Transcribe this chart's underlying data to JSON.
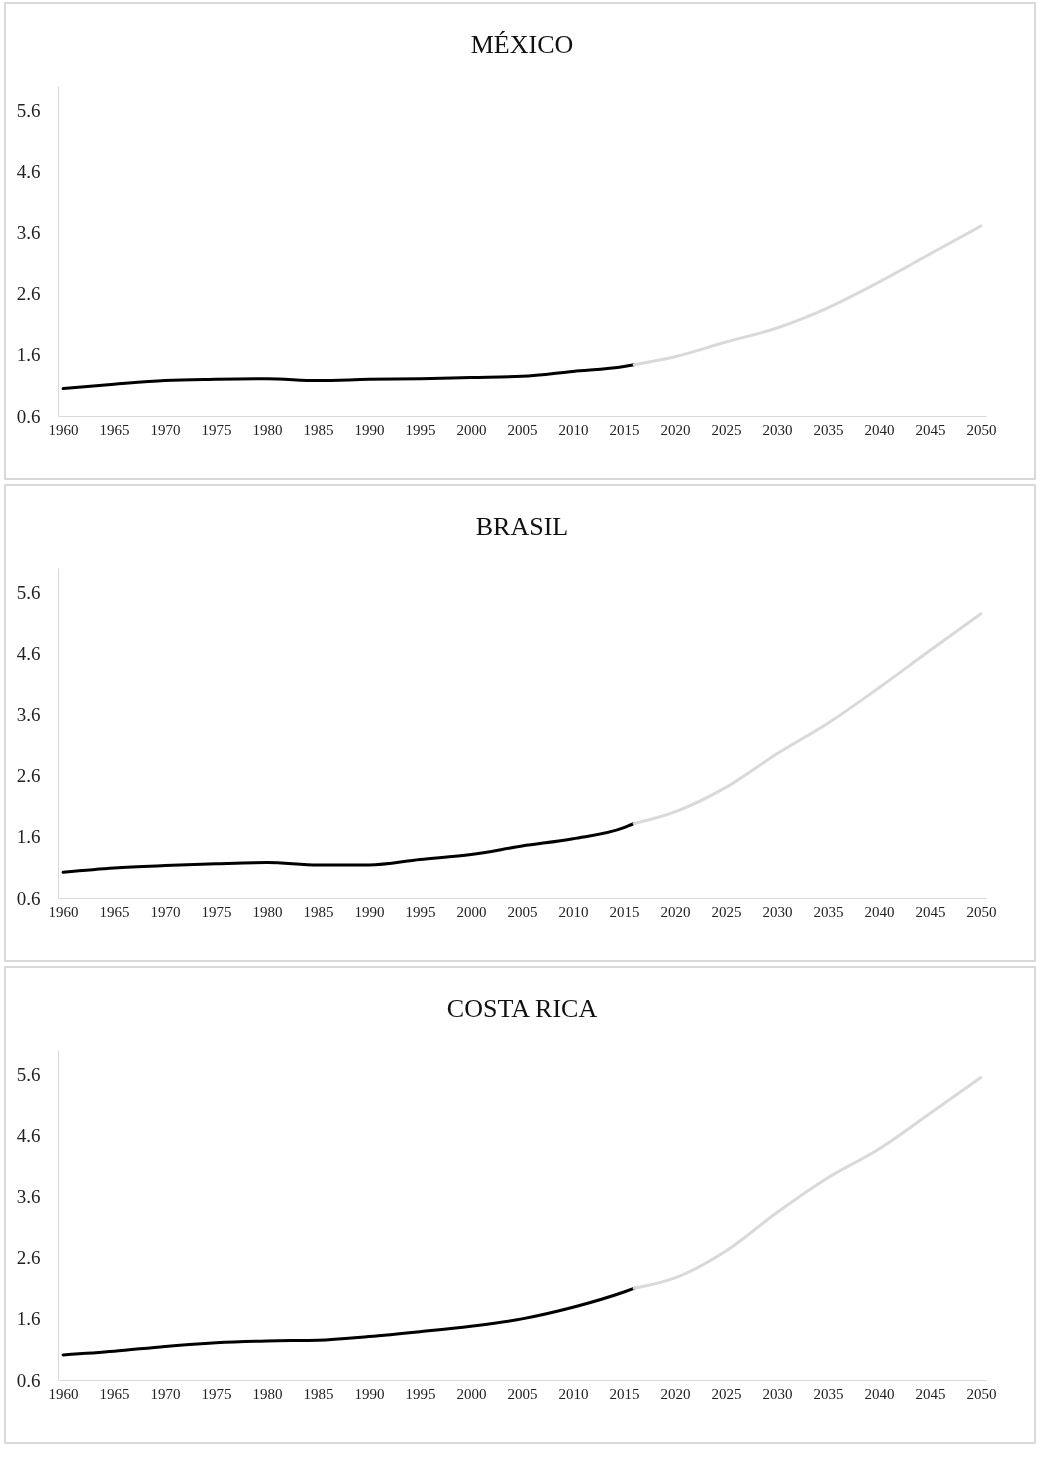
{
  "chart_data": [
    {
      "type": "line",
      "title": "MÉXICO",
      "xlim": [
        1959.5,
        2050.5
      ],
      "xticks": [
        1960,
        1965,
        1970,
        1975,
        1980,
        1985,
        1990,
        1995,
        2000,
        2005,
        2010,
        2015,
        2020,
        2025,
        2030,
        2035,
        2040,
        2045,
        2050
      ],
      "ylim": [
        0.6,
        6.0
      ],
      "yticks": [
        0.6,
        1.6,
        2.6,
        3.6,
        4.6,
        5.6
      ],
      "grid": false,
      "series": [
        {
          "color": "#000000",
          "x": [
            1960,
            1965,
            1970,
            1975,
            1980,
            1985,
            1990,
            1995,
            2000,
            2005,
            2010,
            2015,
            2016
          ],
          "values": [
            1.05,
            1.12,
            1.18,
            1.2,
            1.21,
            1.18,
            1.2,
            1.21,
            1.23,
            1.25,
            1.33,
            1.41,
            1.44
          ]
        },
        {
          "color": "#d9d9d9",
          "x": [
            2016,
            2020,
            2025,
            2030,
            2035,
            2040,
            2045,
            2050
          ],
          "values": [
            1.44,
            1.57,
            1.81,
            2.04,
            2.37,
            2.79,
            3.25,
            3.71
          ]
        }
      ]
    },
    {
      "type": "line",
      "title": "BRASIL",
      "xlim": [
        1959.5,
        2050.5
      ],
      "xticks": [
        1960,
        1965,
        1970,
        1975,
        1980,
        1985,
        1990,
        1995,
        2000,
        2005,
        2010,
        2015,
        2020,
        2025,
        2030,
        2035,
        2040,
        2045,
        2050
      ],
      "ylim": [
        0.6,
        6.0
      ],
      "yticks": [
        0.6,
        1.6,
        2.6,
        3.6,
        4.6,
        5.6
      ],
      "grid": false,
      "series": [
        {
          "color": "#000000",
          "x": [
            1960,
            1965,
            1970,
            1975,
            1980,
            1985,
            1990,
            1995,
            2000,
            2005,
            2010,
            2015,
            2016
          ],
          "values": [
            1.02,
            1.09,
            1.13,
            1.16,
            1.18,
            1.14,
            1.14,
            1.23,
            1.31,
            1.45,
            1.57,
            1.75,
            1.82
          ]
        },
        {
          "color": "#d9d9d9",
          "x": [
            2016,
            2020,
            2025,
            2030,
            2035,
            2040,
            2045,
            2050
          ],
          "values": [
            1.82,
            2.01,
            2.41,
            2.96,
            3.46,
            4.04,
            4.65,
            5.25
          ]
        }
      ]
    },
    {
      "type": "line",
      "title": "COSTA RICA",
      "xlim": [
        1959.5,
        2050.5
      ],
      "xticks": [
        1960,
        1965,
        1970,
        1975,
        1980,
        1985,
        1990,
        1995,
        2000,
        2005,
        2010,
        2015,
        2020,
        2025,
        2030,
        2035,
        2040,
        2045,
        2050
      ],
      "ylim": [
        0.6,
        6.0
      ],
      "yticks": [
        0.6,
        1.6,
        2.6,
        3.6,
        4.6,
        5.6
      ],
      "grid": false,
      "series": [
        {
          "color": "#000000",
          "x": [
            1960,
            1965,
            1970,
            1975,
            1980,
            1985,
            1990,
            1995,
            2000,
            2005,
            2010,
            2015,
            2016
          ],
          "values": [
            1.01,
            1.07,
            1.15,
            1.21,
            1.24,
            1.25,
            1.31,
            1.39,
            1.48,
            1.6,
            1.79,
            2.04,
            2.1
          ]
        },
        {
          "color": "#d9d9d9",
          "x": [
            2016,
            2020,
            2025,
            2030,
            2035,
            2040,
            2045,
            2050
          ],
          "values": [
            2.1,
            2.27,
            2.71,
            3.34,
            3.91,
            4.38,
            4.96,
            5.55
          ]
        }
      ]
    }
  ]
}
